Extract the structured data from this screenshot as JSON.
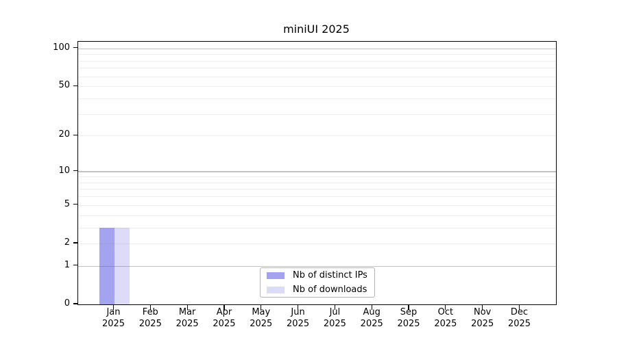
{
  "title": "miniUI 2025",
  "chart_data": {
    "type": "bar",
    "title": "miniUI 2025",
    "x_categories": [
      "Jan",
      "Feb",
      "Mar",
      "Apr",
      "May",
      "Jun",
      "Jul",
      "Aug",
      "Sep",
      "Oct",
      "Nov",
      "Dec"
    ],
    "x_year": "2025",
    "series": [
      {
        "name": "Nb of distinct IPs",
        "color": "#a3a3ef",
        "values": [
          3,
          0,
          0,
          0,
          0,
          0,
          0,
          0,
          0,
          0,
          0,
          0
        ]
      },
      {
        "name": "Nb of downloads",
        "color": "#dcdcf8",
        "values": [
          3,
          0,
          0,
          0,
          0,
          0,
          0,
          0,
          0,
          0,
          0,
          0
        ]
      }
    ],
    "y_scale": "log10(1+x)",
    "ylim": [
      0,
      113
    ],
    "y_ticks": [
      0,
      1,
      2,
      5,
      10,
      20,
      50,
      100
    ],
    "gridlines_major": [
      1,
      10,
      100
    ],
    "gridlines_minor": [
      2,
      3,
      4,
      5,
      6,
      7,
      8,
      9,
      20,
      30,
      40,
      50,
      60,
      70,
      80,
      90
    ],
    "grid_on": true,
    "legend_position": "bottom-center",
    "colors": {
      "background": "#ffffff",
      "axis": "#000000",
      "grid_major": "rgba(100,100,100,0.40)",
      "grid_minor": "rgba(100,100,100,0.11)",
      "bar_distinct_ips": "#a3a3ef",
      "bar_downloads": "#dcdcf8",
      "legend_border": "#b4b4b4"
    }
  }
}
